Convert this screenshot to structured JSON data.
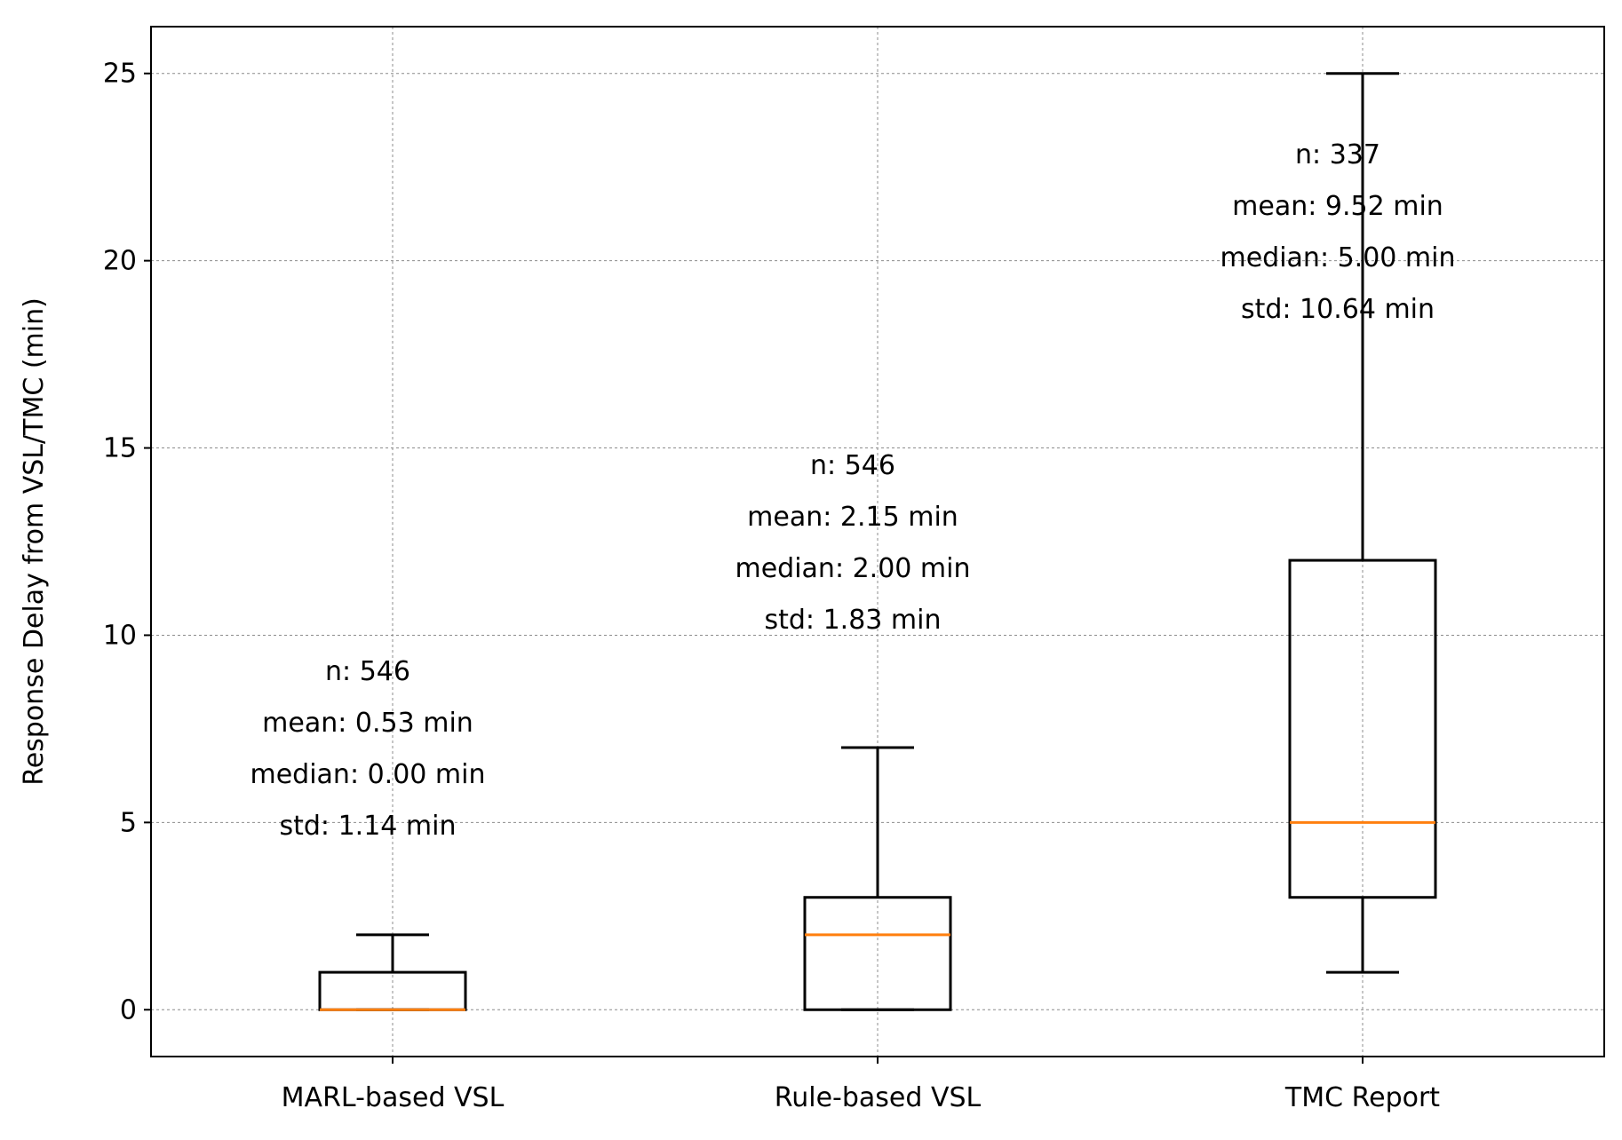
{
  "colors": {
    "box": "#000000",
    "median": "#ff7f0e",
    "grid": "#8c8c8c",
    "background": "#ffffff"
  },
  "chart_data": {
    "type": "box",
    "title": "",
    "xlabel": "",
    "ylabel": "Response Delay from VSL/TMC (min)",
    "ylim": [
      -1.25,
      26.25
    ],
    "yticks": [
      0,
      5,
      10,
      15,
      20,
      25
    ],
    "grid": true,
    "categories": [
      "MARL-based VSL",
      "Rule-based VSL",
      "TMC Report"
    ],
    "boxes": [
      {
        "name": "MARL-based VSL",
        "whisker_low": 0,
        "q1": 0,
        "median": 0,
        "q3": 1,
        "whisker_high": 2,
        "annotation": [
          "n: 546",
          "mean: 0.53 min",
          "median: 0.00 min",
          "std: 1.14 min"
        ],
        "annotation_anchor_y": 8.8
      },
      {
        "name": "Rule-based VSL",
        "whisker_low": 0,
        "q1": 0,
        "median": 2,
        "q3": 3,
        "whisker_high": 7,
        "annotation": [
          "n: 546",
          "mean: 2.15 min",
          "median: 2.00 min",
          "std: 1.83 min"
        ],
        "annotation_anchor_y": 14.3
      },
      {
        "name": "TMC Report",
        "whisker_low": 1,
        "q1": 3,
        "median": 5,
        "q3": 12,
        "whisker_high": 25,
        "annotation": [
          "n: 337",
          "mean: 9.52 min",
          "median: 5.00 min",
          "std: 10.64 min"
        ],
        "annotation_anchor_y": 22.6
      }
    ]
  }
}
